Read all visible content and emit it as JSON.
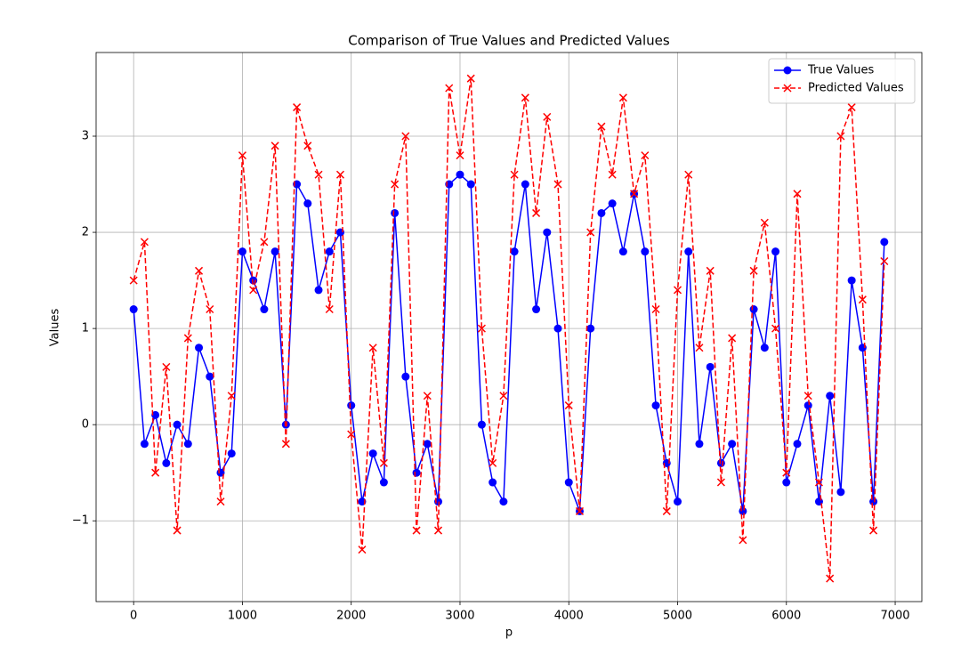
{
  "chart_data": {
    "type": "line",
    "title": "Comparison of True Values and Predicted Values",
    "x_label": "p",
    "y_label": "Values",
    "x": [
      0,
      100,
      200,
      300,
      400,
      500,
      600,
      700,
      800,
      900,
      1000,
      1100,
      1200,
      1300,
      1400,
      1500,
      1600,
      1700,
      1800,
      1900,
      2000,
      2100,
      2200,
      2300,
      2400,
      2500,
      2600,
      2700,
      2800,
      2900,
      3000,
      3100,
      3200,
      3300,
      3400,
      3500,
      3600,
      3700,
      3800,
      3900,
      4000,
      4100,
      4200,
      4300,
      4400,
      4500,
      4600,
      4700,
      4800,
      4900,
      5000,
      5100,
      5200,
      5300,
      5400,
      5500,
      5600,
      5700,
      5800,
      5900,
      6000,
      6100,
      6200,
      6300,
      6400,
      6500,
      6600,
      6700,
      6800,
      6900
    ],
    "series": [
      {
        "name": "True Values",
        "color": "#0000ff",
        "marker": "o",
        "linestyle": "solid",
        "values": [
          1.2,
          -0.2,
          0.1,
          -0.4,
          0.0,
          -0.2,
          0.8,
          0.5,
          -0.5,
          -0.3,
          1.8,
          1.5,
          1.2,
          1.8,
          0.0,
          2.5,
          2.3,
          1.4,
          1.8,
          2.0,
          0.2,
          -0.8,
          -0.3,
          -0.6,
          2.2,
          0.5,
          -0.5,
          -0.2,
          -0.8,
          2.5,
          2.6,
          2.5,
          0.0,
          -0.6,
          -0.8,
          1.8,
          2.5,
          1.2,
          2.0,
          1.0,
          -0.6,
          -0.9,
          1.0,
          2.2,
          2.3,
          1.8,
          2.4,
          1.8,
          0.2,
          -0.4,
          -0.8,
          1.8,
          -0.2,
          0.6,
          -0.4,
          -0.2,
          -0.9,
          1.2,
          0.8,
          1.8,
          -0.6,
          -0.2,
          0.2,
          -0.8,
          0.3,
          -0.7,
          1.5,
          0.8,
          -0.8,
          1.9
        ]
      },
      {
        "name": "Predicted Values",
        "color": "#ff0000",
        "marker": "x",
        "linestyle": "dashed",
        "values": [
          1.5,
          1.9,
          -0.5,
          0.6,
          -1.1,
          0.9,
          1.6,
          1.2,
          -0.8,
          0.3,
          2.8,
          1.4,
          1.9,
          2.9,
          -0.2,
          3.3,
          2.9,
          2.6,
          1.2,
          2.6,
          -0.1,
          -1.3,
          0.8,
          -0.4,
          2.5,
          3.0,
          -1.1,
          0.3,
          -1.1,
          3.5,
          2.8,
          3.6,
          1.0,
          -0.4,
          0.3,
          2.6,
          3.4,
          2.2,
          3.2,
          2.5,
          0.2,
          -0.9,
          2.0,
          3.1,
          2.6,
          3.4,
          2.4,
          2.8,
          1.2,
          -0.9,
          1.4,
          2.6,
          0.8,
          1.6,
          -0.6,
          0.9,
          -1.2,
          1.6,
          2.1,
          1.0,
          -0.5,
          2.4,
          0.3,
          -0.6,
          -1.6,
          3.0,
          3.3,
          1.3,
          -1.1,
          1.7
        ]
      }
    ],
    "xlim": [
      -345,
      7245
    ],
    "ylim": [
      -1.84,
      3.87
    ],
    "xticks": [
      0,
      1000,
      2000,
      3000,
      4000,
      5000,
      6000,
      7000
    ],
    "yticks": [
      {
        "value": -1,
        "label": "−1"
      },
      0,
      1,
      2,
      3
    ],
    "grid": true,
    "legend": "upper right"
  }
}
